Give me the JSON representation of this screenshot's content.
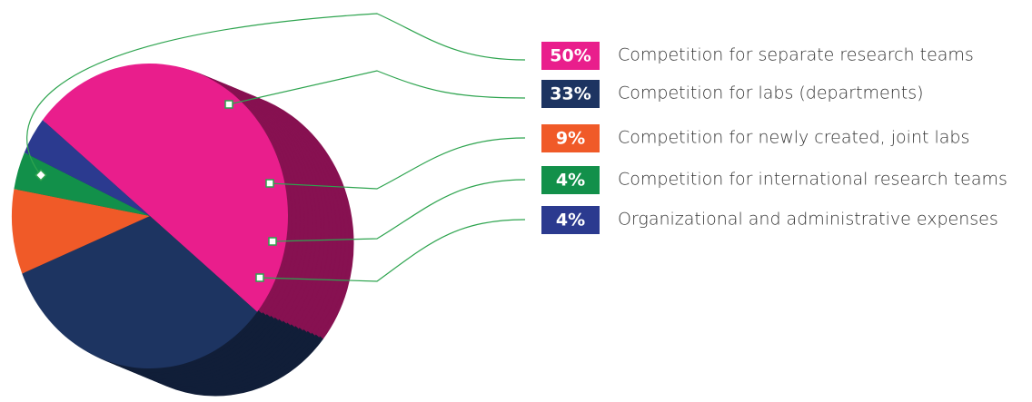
{
  "chart_data": {
    "type": "pie",
    "categories": [
      "Competition for separate research teams",
      "Competition for labs (departments)",
      "Competition for newly created, joint labs",
      "Competition for international research teams",
      "Organizational and administrative expenses"
    ],
    "values": [
      50,
      33,
      9,
      4,
      4
    ],
    "value_labels": [
      "50%",
      "33%",
      "9%",
      "4%",
      "4%"
    ],
    "colors": [
      "#e91e8c",
      "#1d3461",
      "#f05a28",
      "#12904a",
      "#2b3a8f"
    ]
  }
}
